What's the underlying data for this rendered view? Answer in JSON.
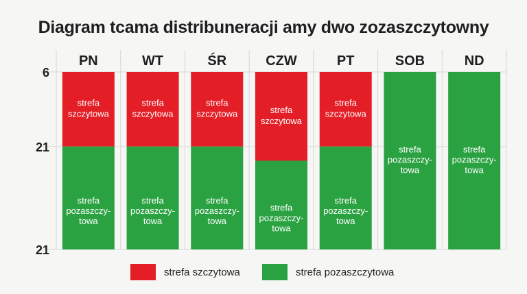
{
  "colors": {
    "peak": "#e41e26",
    "offpeak": "#2ba242",
    "grid": "#d6d6d6",
    "text": "#1f1f1f",
    "bar_text": "#ffffff"
  },
  "chart_data": {
    "type": "bar",
    "title": "Diagram tcama distribuneracji amy dwo zozaszczytowny",
    "categories": [
      "PN",
      "WT",
      "ŚR",
      "CZW",
      "PT",
      "SOB",
      "ND"
    ],
    "y_tick_labels": [
      "6",
      "21",
      "21"
    ],
    "series": [
      {
        "name": "strefa szczytowa",
        "color": "#e41e26",
        "label": "strefa szczytowa",
        "fractions": [
          0.42,
          0.42,
          0.42,
          0.5,
          0.42,
          0,
          0
        ]
      },
      {
        "name": "strefa pozaszczytowa",
        "color": "#2ba242",
        "label_lines": [
          "strefa",
          "pozaszczy-",
          "towa"
        ],
        "fractions": [
          0.58,
          0.58,
          0.58,
          0.5,
          0.58,
          1,
          1
        ]
      }
    ],
    "legend": {
      "position": "bottom",
      "items": [
        {
          "label": "strefa szczytowa",
          "color": "#e41e26"
        },
        {
          "label": "strefa pozaszczytowa",
          "color": "#2ba242"
        }
      ]
    },
    "grid": true
  }
}
